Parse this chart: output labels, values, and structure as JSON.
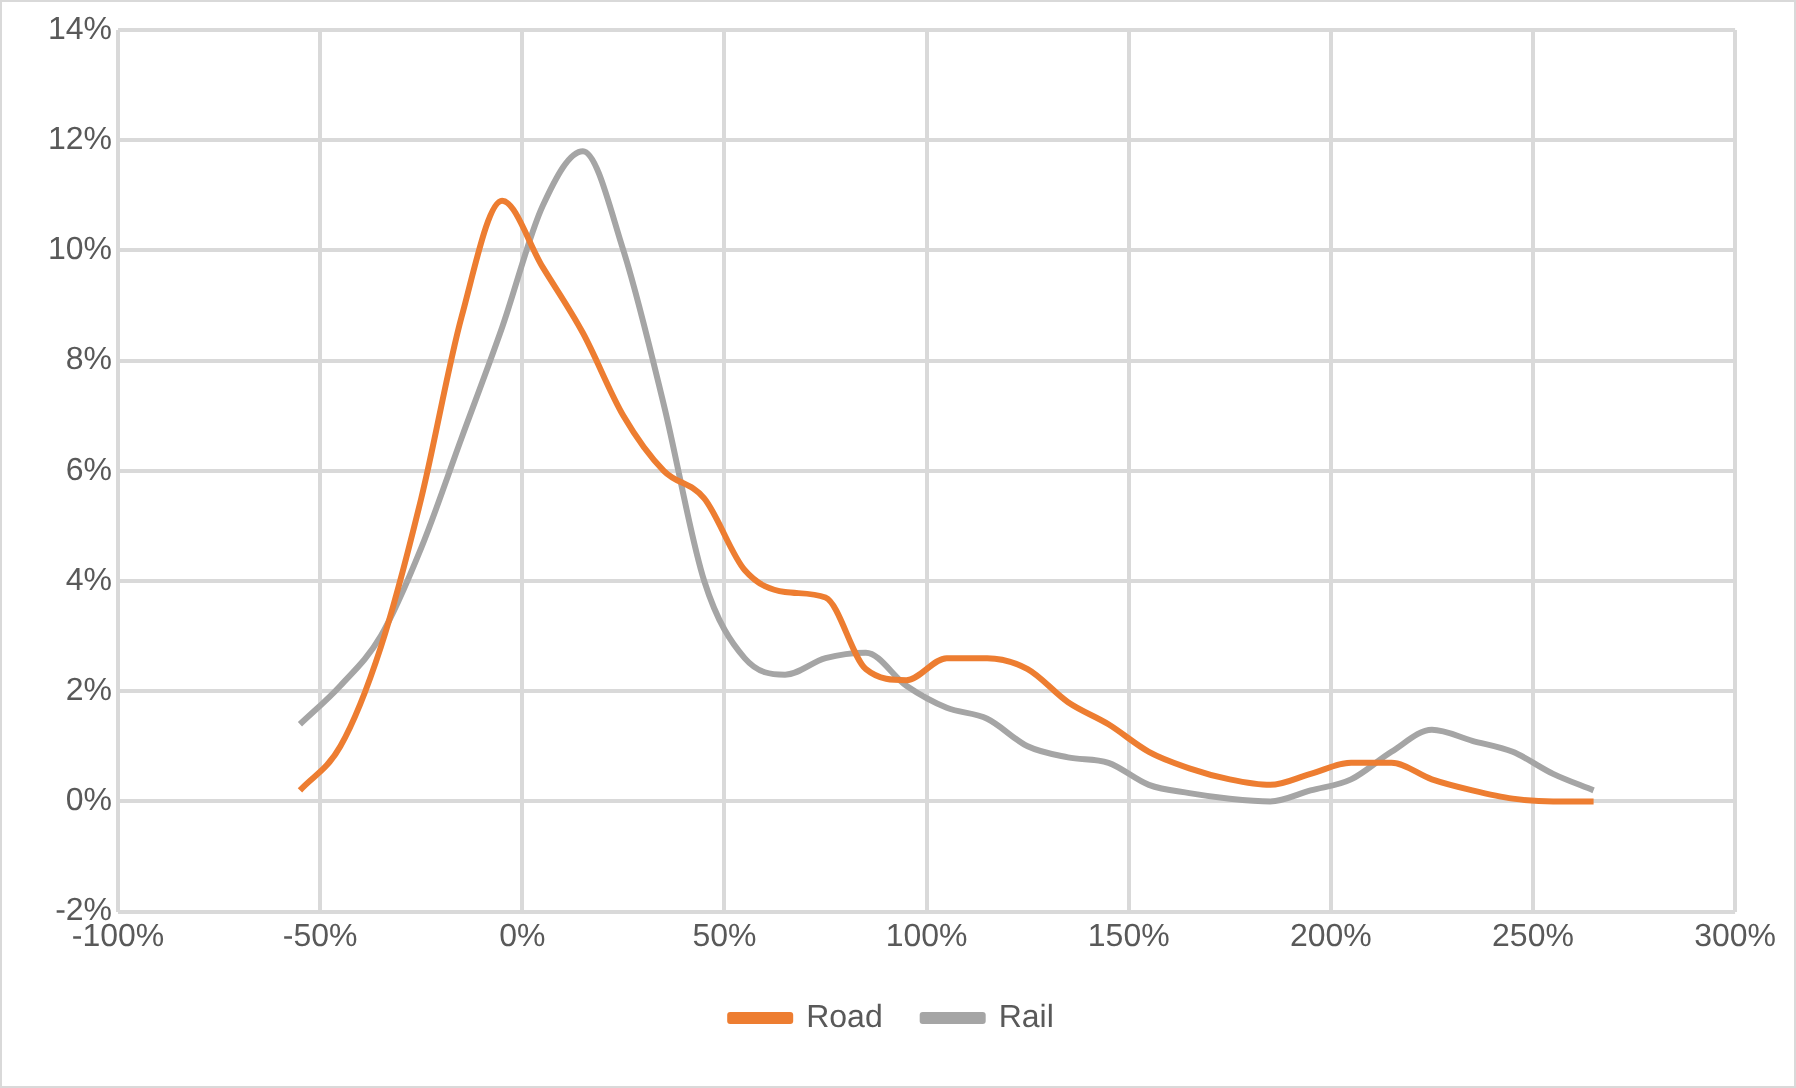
{
  "chart_data": {
    "type": "line",
    "x": [
      -55,
      -45,
      -35,
      -25,
      -15,
      -5,
      5,
      15,
      25,
      35,
      45,
      55,
      65,
      75,
      85,
      95,
      105,
      115,
      125,
      135,
      145,
      155,
      165,
      175,
      185,
      195,
      205,
      215,
      225,
      235,
      245,
      255,
      265
    ],
    "series": [
      {
        "name": "Road",
        "color": "#ed7d31",
        "values": [
          0.2,
          1.0,
          2.8,
          5.5,
          8.8,
          10.9,
          9.7,
          8.5,
          7.0,
          6.0,
          5.5,
          4.2,
          3.8,
          3.7,
          2.4,
          2.2,
          2.6,
          2.6,
          2.4,
          1.8,
          1.4,
          0.9,
          0.6,
          0.4,
          0.3,
          0.5,
          0.7,
          0.7,
          0.4,
          0.2,
          0.05,
          0,
          0
        ]
      },
      {
        "name": "Rail",
        "color": "#a5a5a5",
        "values": [
          1.4,
          2.1,
          3.0,
          4.6,
          6.6,
          8.6,
          10.8,
          11.8,
          10.0,
          7.2,
          4.0,
          2.6,
          2.3,
          2.6,
          2.7,
          2.1,
          1.7,
          1.5,
          1.0,
          0.8,
          0.7,
          0.3,
          0.15,
          0.05,
          0,
          0.2,
          0.4,
          0.9,
          1.3,
          1.1,
          0.9,
          0.5,
          0.2
        ]
      }
    ],
    "xlim": [
      -100,
      300
    ],
    "xticks": [
      {
        "value": -100,
        "label": "-100%"
      },
      {
        "value": -50,
        "label": "-50%"
      },
      {
        "value": 0,
        "label": "0%"
      },
      {
        "value": 50,
        "label": "50%"
      },
      {
        "value": 100,
        "label": "100%"
      },
      {
        "value": 150,
        "label": "150%"
      },
      {
        "value": 200,
        "label": "200%"
      },
      {
        "value": 250,
        "label": "250%"
      },
      {
        "value": 300,
        "label": "300%"
      }
    ],
    "ylim": [
      -2,
      14
    ],
    "yticks": [
      {
        "value": -2,
        "label": "-2%"
      },
      {
        "value": 0,
        "label": "0%"
      },
      {
        "value": 2,
        "label": "2%"
      },
      {
        "value": 4,
        "label": "4%"
      },
      {
        "value": 6,
        "label": "6%"
      },
      {
        "value": 8,
        "label": "8%"
      },
      {
        "value": 10,
        "label": "10%"
      },
      {
        "value": 12,
        "label": "12%"
      },
      {
        "value": 14,
        "label": "14%"
      }
    ],
    "grid": true,
    "legend": "bottom",
    "marker": "none",
    "line_style": "solid"
  }
}
